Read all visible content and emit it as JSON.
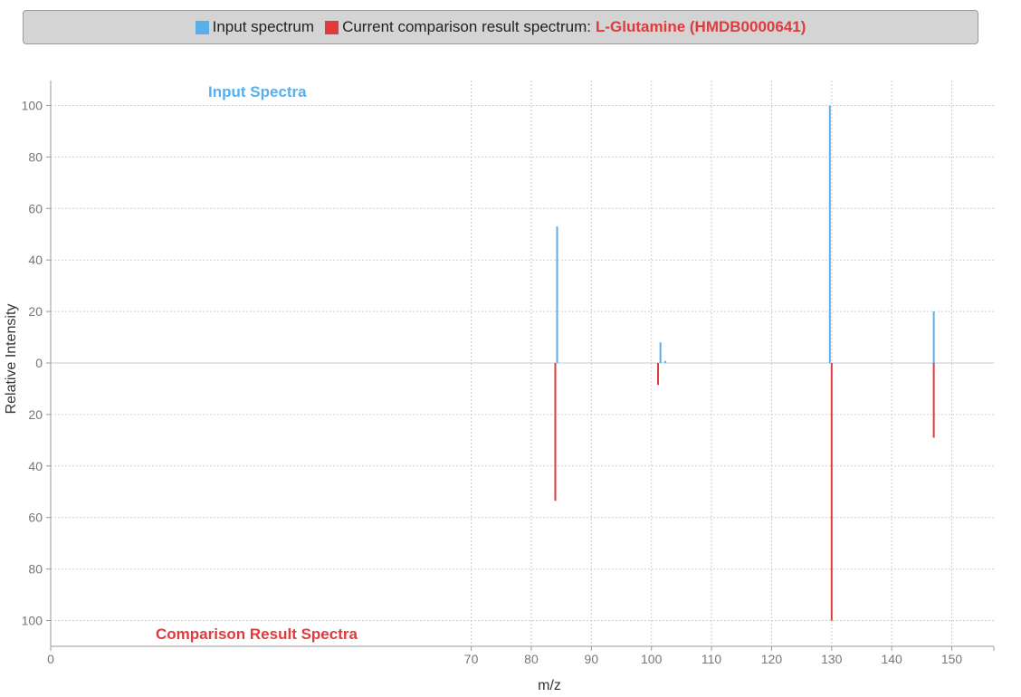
{
  "legend": {
    "input_label": "Input spectrum",
    "comparison_label": "Current comparison result spectrum:",
    "compound_name": "L-Glutamine (HMDB0000641)"
  },
  "colors": {
    "input": "#5aaeea",
    "comparison": "#e03a3a",
    "grid": "#cfcfcf",
    "axis": "#9a9a9a",
    "text": "#333333",
    "tick_text": "#777777"
  },
  "chart_data": {
    "type": "bar",
    "xlabel": "m/z",
    "ylabel": "Relative Intensity",
    "top_label": "Input Spectra",
    "bottom_label": "Comparison Result Spectra",
    "xlim": [
      0,
      157
    ],
    "x_ticks": [
      0,
      70,
      80,
      90,
      100,
      110,
      120,
      130,
      140,
      150
    ],
    "y_ticks_top": [
      0,
      20,
      40,
      60,
      80,
      100
    ],
    "y_ticks_bottom": [
      20,
      40,
      60,
      80,
      100
    ],
    "ylim": [
      -110,
      110
    ],
    "grid": true,
    "series": [
      {
        "name": "Input spectrum",
        "points": [
          {
            "x": 84.3,
            "y": 53
          },
          {
            "x": 101.5,
            "y": 8
          },
          {
            "x": 102.3,
            "y": 0.8
          },
          {
            "x": 129.7,
            "y": 100
          },
          {
            "x": 147.0,
            "y": 20
          }
        ]
      },
      {
        "name": "Current comparison result spectrum",
        "points": [
          {
            "x": 84.0,
            "y": 53.5
          },
          {
            "x": 101.1,
            "y": 8.5
          },
          {
            "x": 130.0,
            "y": 100
          },
          {
            "x": 147.0,
            "y": 29
          }
        ]
      }
    ]
  }
}
